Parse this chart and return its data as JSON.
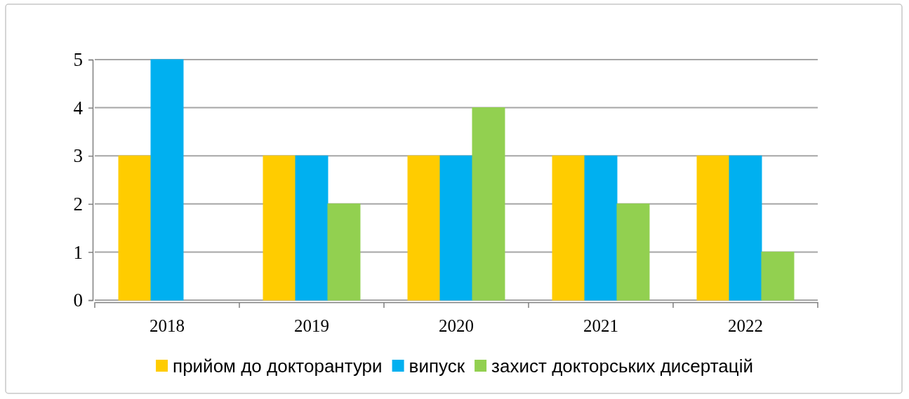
{
  "chart_data": {
    "type": "bar",
    "categories": [
      "2018",
      "2019",
      "2020",
      "2021",
      "2022"
    ],
    "series": [
      {
        "name": "прийом до докторантури",
        "color": "#ffcc00",
        "values": [
          3,
          3,
          3,
          3,
          3
        ]
      },
      {
        "name": "випуск",
        "color": "#00b0f0",
        "values": [
          5,
          3,
          3,
          3,
          3
        ]
      },
      {
        "name": "захист докторських дисертацій",
        "color": "#92d050",
        "values": [
          0,
          2,
          4,
          2,
          1
        ]
      }
    ],
    "ylim": [
      0,
      5
    ],
    "yticks": [
      0,
      1,
      2,
      3,
      4,
      5
    ],
    "grid": true,
    "legend": "bottom"
  }
}
